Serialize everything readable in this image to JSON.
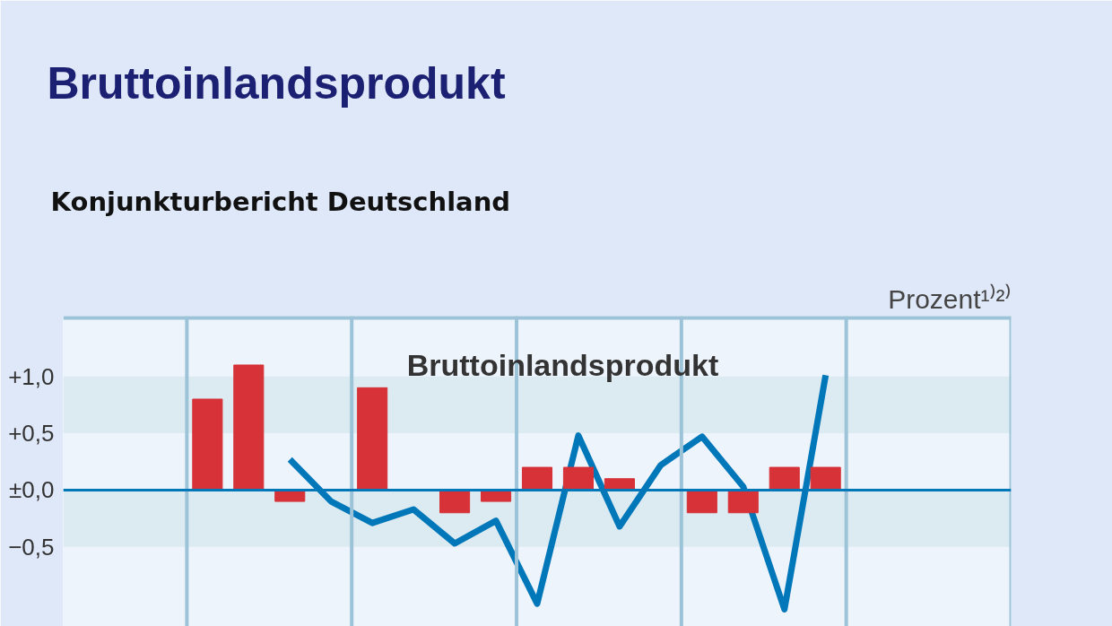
{
  "chart_data": {
    "type": "bar",
    "title": "Bruttoinlandsprodukt",
    "subtitle": "Konjunkturbericht Deutschland",
    "ylabel": "Prozent¹⁾²⁾",
    "annotations": [
      "Bruttoinlandsprodukt"
    ],
    "categories": [
      null,
      null,
      null,
      null,
      null,
      null,
      null,
      null,
      null,
      null,
      null,
      null,
      null,
      null,
      null,
      null,
      null,
      null,
      null,
      null,
      null,
      null,
      null
    ],
    "series": [
      {
        "type": "line",
        "color": "#0077b8",
        "values": [
          null,
          null,
          null,
          null,
          null,
          0.27,
          -0.1,
          -0.29,
          -0.17,
          -0.47,
          -0.27,
          -1.0,
          0.48,
          -0.32,
          0.22,
          0.47,
          0.03,
          -1.05,
          1.01,
          null,
          null,
          null,
          null
        ]
      },
      {
        "color": "#d63237",
        "values": [
          null,
          null,
          null,
          0.8,
          1.1,
          -0.1,
          0,
          0.9,
          0,
          -0.2,
          -0.1,
          0.2,
          0.2,
          0.1,
          0,
          -0.2,
          -0.2,
          0.2,
          0.2,
          null,
          null,
          null,
          null
        ]
      }
    ],
    "ylim": [
      -1.2,
      1.53
    ],
    "yticks": [
      {
        "value": -0.5,
        "label": "−0,5"
      },
      {
        "value": 0,
        "label": "±0,0"
      },
      {
        "value": 0.5,
        "label": "+0,5"
      },
      {
        "value": 1.0,
        "label": "+1,0"
      }
    ],
    "ref_lines": [
      {
        "axis": "y",
        "value": 0,
        "color": "#0077b8"
      }
    ],
    "bands": [
      {
        "axis": "y",
        "from": 0.5,
        "to": 1.0,
        "color": "#dceaf2"
      },
      {
        "axis": "y",
        "from": -0.5,
        "to": 0,
        "color": "#dceaf2"
      }
    ],
    "grid": "x",
    "tick_labels": "y"
  }
}
